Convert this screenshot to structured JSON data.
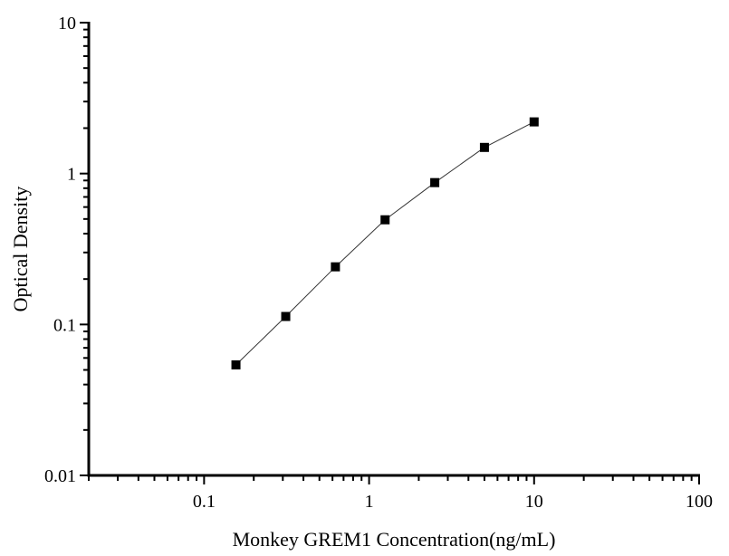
{
  "chart_data": {
    "type": "line",
    "title": "",
    "xlabel": "Monkey GREM1 Concentration(ng/mL)",
    "ylabel": "Optical Density",
    "xscale": "log",
    "yscale": "log",
    "xlim": [
      0.02,
      100
    ],
    "ylim": [
      0.01,
      10
    ],
    "xticks": [
      0.1,
      1,
      10,
      100
    ],
    "xtick_labels": [
      "0.1",
      "1",
      "10",
      "100"
    ],
    "yticks": [
      0.01,
      0.1,
      1,
      10
    ],
    "ytick_labels": [
      "0.01",
      "0.1",
      "1",
      "10"
    ],
    "grid": false,
    "marker": "square",
    "color": "#000000",
    "series": [
      {
        "x": [
          0.156,
          0.3125,
          0.625,
          1.25,
          2.5,
          5,
          10
        ],
        "y": [
          0.054,
          0.113,
          0.241,
          0.494,
          0.871,
          1.49,
          2.2
        ]
      }
    ]
  }
}
